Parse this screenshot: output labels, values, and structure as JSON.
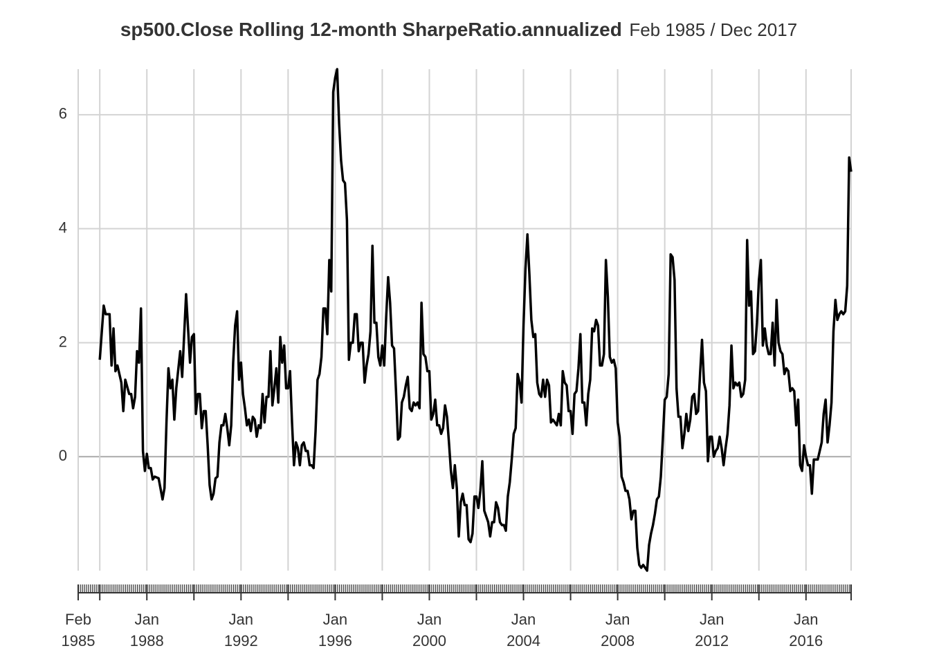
{
  "chart_data": {
    "type": "line",
    "title": "sp500.Close Rolling 12-month SharpeRatio.annualized",
    "subtitle": "Feb 1985 / Dec 2017",
    "xlim": [
      "1985-02",
      "2017-12"
    ],
    "xgrid": [
      "1985-02",
      "1986-01",
      "1988-01",
      "1990-01",
      "1992-01",
      "1994-01",
      "1996-01",
      "1998-01",
      "2000-01",
      "2002-01",
      "2004-01",
      "2006-01",
      "2008-01",
      "2010-01",
      "2012-01",
      "2014-01",
      "2016-01",
      "2017-12"
    ],
    "xticks": [
      {
        "value": "1985-02",
        "label": "Feb 1985"
      },
      {
        "value": "1988-01",
        "label": "Jan 1988"
      },
      {
        "value": "1992-01",
        "label": "Jan 1992"
      },
      {
        "value": "1996-01",
        "label": "Jan 1996"
      },
      {
        "value": "2000-01",
        "label": "Jan 2000"
      },
      {
        "value": "2004-01",
        "label": "Jan 2004"
      },
      {
        "value": "2008-01",
        "label": "Jan 2008"
      },
      {
        "value": "2012-01",
        "label": "Jan 2012"
      },
      {
        "value": "2016-01",
        "label": "Jan 2016"
      }
    ],
    "ylim": [
      -2.0,
      6.8
    ],
    "yticks": [
      0,
      2,
      4,
      6
    ],
    "grid": true,
    "x": [
      "1986-01",
      "1986-03",
      "1986-04",
      "1986-06",
      "1986-07",
      "1986-08",
      "1986-09",
      "1986-10",
      "1986-12",
      "1987-01",
      "1987-02",
      "1987-04",
      "1987-05",
      "1987-06",
      "1987-07",
      "1987-08",
      "1987-09",
      "1987-10",
      "1987-11",
      "1987-12",
      "1988-01",
      "1988-02",
      "1988-03",
      "1988-04",
      "1988-05",
      "1988-07",
      "1988-09",
      "1988-10",
      "1988-11",
      "1988-12",
      "1989-01",
      "1989-02",
      "1989-03",
      "1989-04",
      "1989-06",
      "1989-07",
      "1989-09",
      "1989-11",
      "1989-12",
      "1990-01",
      "1990-02",
      "1990-03",
      "1990-04",
      "1990-05",
      "1990-06",
      "1990-07",
      "1990-08",
      "1990-09",
      "1990-10",
      "1990-11",
      "1990-12",
      "1991-01",
      "1991-02",
      "1991-03",
      "1991-04",
      "1991-05",
      "1991-06",
      "1991-07",
      "1991-08",
      "1991-09",
      "1991-10",
      "1991-11",
      "1991-12",
      "1992-01",
      "1992-02",
      "1992-03",
      "1992-04",
      "1992-05",
      "1992-06",
      "1992-07",
      "1992-08",
      "1992-09",
      "1992-10",
      "1992-11",
      "1992-12",
      "1993-01",
      "1993-02",
      "1993-03",
      "1993-04",
      "1993-05",
      "1993-06",
      "1993-07",
      "1993-08",
      "1993-09",
      "1993-10",
      "1993-11",
      "1993-12",
      "1994-01",
      "1994-02",
      "1994-03",
      "1994-04",
      "1994-05",
      "1994-06",
      "1994-07",
      "1994-08",
      "1994-09",
      "1994-10",
      "1994-11",
      "1994-12",
      "1995-01",
      "1995-02",
      "1995-03",
      "1995-04",
      "1995-05",
      "1995-06",
      "1995-07",
      "1995-08",
      "1995-09",
      "1995-10",
      "1995-11",
      "1995-12",
      "1996-01",
      "1996-02",
      "1996-03",
      "1996-04",
      "1996-05",
      "1996-06",
      "1996-07",
      "1996-08",
      "1996-09",
      "1996-10",
      "1996-11",
      "1996-12",
      "1997-01",
      "1997-02",
      "1997-03",
      "1997-04",
      "1997-05",
      "1997-06",
      "1997-07",
      "1997-08",
      "1997-09",
      "1997-10",
      "1997-11",
      "1997-12",
      "1998-01",
      "1998-02",
      "1998-03",
      "1998-04",
      "1998-05",
      "1998-06",
      "1998-07",
      "1998-08",
      "1998-09",
      "1998-10",
      "1998-11",
      "1998-12",
      "1999-01",
      "1999-02",
      "1999-03",
      "1999-04",
      "1999-05",
      "1999-06",
      "1999-07",
      "1999-08",
      "1999-09",
      "1999-10",
      "1999-11",
      "1999-12",
      "2000-01",
      "2000-02",
      "2000-03",
      "2000-04",
      "2000-05",
      "2000-06",
      "2000-07",
      "2000-08",
      "2000-09",
      "2000-10",
      "2000-11",
      "2000-12",
      "2001-01",
      "2001-02",
      "2001-03",
      "2001-04",
      "2001-05",
      "2001-06",
      "2001-07",
      "2001-08",
      "2001-09",
      "2001-10",
      "2001-11",
      "2001-12",
      "2002-01",
      "2002-02",
      "2002-03",
      "2002-04",
      "2002-05",
      "2002-06",
      "2002-07",
      "2002-08",
      "2002-09",
      "2002-10",
      "2002-11",
      "2002-12",
      "2003-01",
      "2003-02",
      "2003-03",
      "2003-04",
      "2003-05",
      "2003-06",
      "2003-07",
      "2003-08",
      "2003-09",
      "2003-10",
      "2003-11",
      "2003-12",
      "2004-01",
      "2004-02",
      "2004-03",
      "2004-04",
      "2004-05",
      "2004-06",
      "2004-07",
      "2004-08",
      "2004-09",
      "2004-10",
      "2004-11",
      "2004-12",
      "2005-01",
      "2005-02",
      "2005-03",
      "2005-04",
      "2005-05",
      "2005-06",
      "2005-07",
      "2005-08",
      "2005-09",
      "2005-10",
      "2005-11",
      "2005-12",
      "2006-01",
      "2006-02",
      "2006-03",
      "2006-04",
      "2006-05",
      "2006-06",
      "2006-07",
      "2006-08",
      "2006-09",
      "2006-10",
      "2006-11",
      "2006-12",
      "2007-01",
      "2007-02",
      "2007-03",
      "2007-04",
      "2007-05",
      "2007-06",
      "2007-07",
      "2007-08",
      "2007-09",
      "2007-10",
      "2007-11",
      "2007-12",
      "2008-01",
      "2008-02",
      "2008-03",
      "2008-04",
      "2008-05",
      "2008-06",
      "2008-07",
      "2008-08",
      "2008-09",
      "2008-10",
      "2008-11",
      "2008-12",
      "2009-01",
      "2009-02",
      "2009-03",
      "2009-04",
      "2009-05",
      "2009-06",
      "2009-07",
      "2009-08",
      "2009-09",
      "2009-10",
      "2009-11",
      "2009-12",
      "2010-01",
      "2010-02",
      "2010-03",
      "2010-04",
      "2010-05",
      "2010-06",
      "2010-07",
      "2010-08",
      "2010-09",
      "2010-10",
      "2010-11",
      "2010-12",
      "2011-01",
      "2011-02",
      "2011-03",
      "2011-04",
      "2011-05",
      "2011-06",
      "2011-07",
      "2011-08",
      "2011-09",
      "2011-10",
      "2011-11",
      "2011-12",
      "2012-01",
      "2012-02",
      "2012-03",
      "2012-04",
      "2012-05",
      "2012-06",
      "2012-07",
      "2012-08",
      "2012-09",
      "2012-10",
      "2012-11",
      "2012-12",
      "2013-01",
      "2013-02",
      "2013-03",
      "2013-04",
      "2013-05",
      "2013-06",
      "2013-07",
      "2013-08",
      "2013-09",
      "2013-10",
      "2013-11",
      "2013-12",
      "2014-01",
      "2014-02",
      "2014-03",
      "2014-04",
      "2014-05",
      "2014-06",
      "2014-07",
      "2014-08",
      "2014-09",
      "2014-10",
      "2014-11",
      "2014-12",
      "2015-01",
      "2015-02",
      "2015-03",
      "2015-04",
      "2015-05",
      "2015-06",
      "2015-07",
      "2015-08",
      "2015-09",
      "2015-10",
      "2015-11",
      "2015-12",
      "2016-01",
      "2016-02",
      "2016-03",
      "2016-04",
      "2016-05",
      "2016-06",
      "2016-07",
      "2016-08",
      "2016-09",
      "2016-10",
      "2016-11",
      "2016-12",
      "2017-01",
      "2017-02",
      "2017-03",
      "2017-04",
      "2017-05",
      "2017-06",
      "2017-07",
      "2017-08",
      "2017-09",
      "2017-10",
      "2017-11",
      "2017-12"
    ],
    "series": [
      {
        "color": "#000000",
        "values": [
          1.7,
          2.65,
          2.5,
          2.5,
          1.6,
          2.25,
          1.5,
          1.6,
          1.3,
          0.8,
          1.35,
          1.1,
          1.1,
          0.85,
          1.05,
          1.85,
          1.65,
          2.6,
          0.1,
          -0.25,
          0.05,
          -0.2,
          -0.2,
          -0.4,
          -0.35,
          -0.38,
          -0.75,
          -0.55,
          0.6,
          1.55,
          1.2,
          1.35,
          0.65,
          1.2,
          1.85,
          1.4,
          2.85,
          1.65,
          2.1,
          2.15,
          0.75,
          1.1,
          1.1,
          0.5,
          0.8,
          0.8,
          0.2,
          -0.5,
          -0.75,
          -0.65,
          -0.38,
          -0.35,
          0.25,
          0.55,
          0.55,
          0.75,
          0.5,
          0.2,
          0.55,
          1.65,
          2.3,
          2.55,
          1.35,
          1.65,
          1.1,
          0.85,
          0.55,
          0.65,
          0.45,
          0.7,
          0.65,
          0.35,
          0.55,
          0.5,
          1.1,
          0.6,
          1.05,
          1.05,
          1.85,
          0.9,
          1.2,
          1.55,
          0.95,
          2.1,
          1.65,
          1.95,
          1.2,
          1.2,
          1.5,
          0.6,
          -0.15,
          0.25,
          0.15,
          -0.15,
          0.2,
          0.25,
          0.1,
          0.1,
          -0.15,
          -0.15,
          -0.2,
          0.45,
          1.35,
          1.45,
          1.75,
          2.6,
          2.6,
          2.15,
          3.45,
          2.9,
          6.4,
          6.65,
          6.8,
          5.85,
          5.2,
          4.85,
          4.8,
          4.15,
          1.7,
          2.0,
          2.0,
          2.5,
          2.5,
          1.85,
          2.0,
          2.0,
          1.3,
          1.6,
          1.8,
          2.2,
          3.7,
          2.35,
          2.35,
          1.75,
          1.6,
          1.95,
          1.6,
          2.45,
          3.15,
          2.7,
          1.95,
          1.9,
          1.15,
          0.3,
          0.35,
          0.95,
          1.05,
          1.25,
          1.4,
          0.85,
          0.8,
          0.95,
          0.9,
          0.95,
          0.85,
          2.7,
          1.8,
          1.75,
          1.5,
          1.5,
          0.65,
          0.75,
          1.0,
          0.55,
          0.55,
          0.4,
          0.5,
          0.9,
          0.7,
          0.25,
          -0.25,
          -0.55,
          -0.15,
          -0.55,
          -1.4,
          -0.8,
          -0.65,
          -0.85,
          -0.85,
          -1.45,
          -1.5,
          -1.35,
          -0.7,
          -0.7,
          -0.9,
          -0.6,
          -0.08,
          -0.95,
          -1.05,
          -1.15,
          -1.4,
          -1.15,
          -1.15,
          -0.8,
          -0.9,
          -1.15,
          -1.2,
          -1.2,
          -1.3,
          -0.7,
          -0.45,
          -0.05,
          0.4,
          0.5,
          1.45,
          1.3,
          0.95,
          2.3,
          3.3,
          3.9,
          3.2,
          2.4,
          2.1,
          2.15,
          1.3,
          1.1,
          1.05,
          1.35,
          1.05,
          1.35,
          1.25,
          0.6,
          0.65,
          0.6,
          0.55,
          0.75,
          0.55,
          1.5,
          1.3,
          1.25,
          0.8,
          0.8,
          0.4,
          1.1,
          1.15,
          1.55,
          2.15,
          0.95,
          0.95,
          0.55,
          1.1,
          1.35,
          2.25,
          2.2,
          2.4,
          2.3,
          1.6,
          1.6,
          1.8,
          3.45,
          2.8,
          1.75,
          1.65,
          1.7,
          1.55,
          0.6,
          0.35,
          -0.35,
          -0.45,
          -0.6,
          -0.6,
          -0.75,
          -1.1,
          -0.95,
          -0.95,
          -1.6,
          -1.9,
          -1.95,
          -1.9,
          -1.95,
          -2.0,
          -1.55,
          -1.35,
          -1.2,
          -1.0,
          -0.75,
          -0.7,
          -0.35,
          0.3,
          1.0,
          1.05,
          1.45,
          3.55,
          3.5,
          3.1,
          1.2,
          0.7,
          0.7,
          0.15,
          0.4,
          0.75,
          0.45,
          0.65,
          1.05,
          1.1,
          0.75,
          0.8,
          1.45,
          2.05,
          1.3,
          1.15,
          -0.08,
          0.35,
          0.35,
          0.0,
          0.1,
          0.15,
          0.35,
          0.15,
          -0.15,
          0.15,
          0.4,
          0.9,
          1.95,
          1.2,
          1.3,
          1.25,
          1.3,
          1.05,
          1.1,
          1.35,
          3.8,
          2.65,
          2.9,
          1.8,
          1.85,
          2.35,
          3.1,
          3.45,
          1.95,
          2.25,
          1.95,
          1.8,
          1.8,
          2.35,
          1.6,
          2.75,
          2.0,
          1.85,
          1.8,
          1.45,
          1.55,
          1.5,
          1.15,
          1.2,
          1.15,
          0.55,
          1.0,
          -0.15,
          -0.25,
          0.2,
          0.0,
          -0.15,
          -0.15,
          -0.65,
          -0.05,
          -0.05,
          -0.05,
          0.1,
          0.25,
          0.75,
          1.0,
          0.25,
          0.55,
          0.95,
          2.2,
          2.75,
          2.4,
          2.5,
          2.55,
          2.5,
          2.55,
          3.0,
          5.25,
          5.0
        ]
      }
    ]
  }
}
